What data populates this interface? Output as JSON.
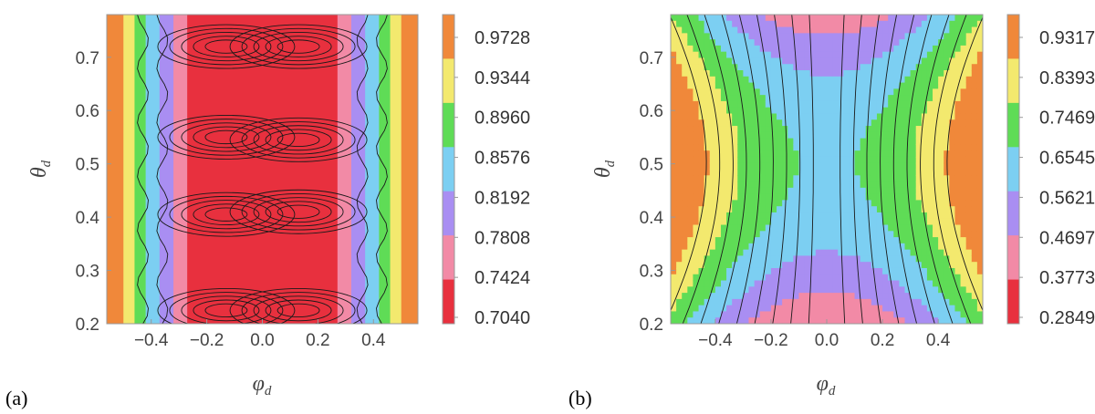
{
  "chart_data": [
    {
      "type": "heatmap",
      "panel_label": "(a)",
      "xlabel": "φ",
      "xlabel_sub": "d",
      "ylabel": "θ",
      "ylabel_sub": "d",
      "xlim": [
        -0.56,
        0.56
      ],
      "ylim": [
        0.2,
        0.78
      ],
      "x_ticks": [
        -0.4,
        -0.2,
        0.0,
        0.2,
        0.4
      ],
      "x_tick_labels": [
        "−0.4",
        "−0.2",
        "0.0",
        "0.2",
        "0.4"
      ],
      "y_ticks": [
        0.2,
        0.3,
        0.4,
        0.5,
        0.6,
        0.7
      ],
      "y_tick_labels": [
        "0.2",
        "0.3",
        "0.4",
        "0.5",
        "0.6",
        "0.7"
      ],
      "colorbar_levels": [
        "0.9728",
        "0.9344",
        "0.8960",
        "0.8576",
        "0.8192",
        "0.7808",
        "0.7424",
        "0.7040"
      ],
      "colorbar_colors": [
        "#f0883a",
        "#f3e96e",
        "#5fdc56",
        "#7ccff2",
        "#a98ef2",
        "#f28aa6",
        "#e8303e"
      ],
      "bands": [
        {
          "x_from": -0.56,
          "x_to": -0.53,
          "value": 0.98
        },
        {
          "x_from": -0.53,
          "x_to": -0.5,
          "value": 0.95
        },
        {
          "x_from": -0.5,
          "x_to": -0.46,
          "value": 0.91
        },
        {
          "x_from": -0.46,
          "x_to": -0.42,
          "value": 0.87
        },
        {
          "x_from": -0.42,
          "x_to": -0.37,
          "value": 0.83
        },
        {
          "x_from": -0.37,
          "x_to": -0.32,
          "value": 0.8
        },
        {
          "x_from": -0.32,
          "x_to": -0.27,
          "value": 0.76
        },
        {
          "x_from": -0.27,
          "x_to": 0.27,
          "value": 0.7
        },
        {
          "x_from": 0.27,
          "x_to": 0.32,
          "value": 0.76
        },
        {
          "x_from": 0.32,
          "x_to": 0.37,
          "value": 0.8
        },
        {
          "x_from": 0.37,
          "x_to": 0.42,
          "value": 0.83
        },
        {
          "x_from": 0.42,
          "x_to": 0.46,
          "value": 0.87
        },
        {
          "x_from": 0.46,
          "x_to": 0.5,
          "value": 0.91
        },
        {
          "x_from": 0.5,
          "x_to": 0.53,
          "value": 0.95
        },
        {
          "x_from": 0.53,
          "x_to": 0.56,
          "value": 0.98
        }
      ],
      "contour_centers": [
        {
          "x": -0.13,
          "y": 0.72
        },
        {
          "x": 0.13,
          "y": 0.72
        },
        {
          "x": -0.13,
          "y": 0.55
        },
        {
          "x": 0.13,
          "y": 0.545
        },
        {
          "x": -0.13,
          "y": 0.405
        },
        {
          "x": 0.13,
          "y": 0.41
        },
        {
          "x": -0.13,
          "y": 0.225
        },
        {
          "x": 0.13,
          "y": 0.225
        }
      ]
    },
    {
      "type": "heatmap",
      "panel_label": "(b)",
      "xlabel": "φ",
      "xlabel_sub": "d",
      "ylabel": "θ",
      "ylabel_sub": "d",
      "xlim": [
        -0.56,
        0.56
      ],
      "ylim": [
        0.2,
        0.78
      ],
      "x_ticks": [
        -0.4,
        -0.2,
        0.0,
        0.2,
        0.4
      ],
      "x_tick_labels": [
        "−0.4",
        "−0.2",
        "0.0",
        "0.2",
        "0.4"
      ],
      "y_ticks": [
        0.2,
        0.3,
        0.4,
        0.5,
        0.6,
        0.7
      ],
      "y_tick_labels": [
        "0.2",
        "0.3",
        "0.4",
        "0.5",
        "0.6",
        "0.7"
      ],
      "colorbar_levels": [
        "0.9317",
        "0.8393",
        "0.7469",
        "0.6545",
        "0.5621",
        "0.4697",
        "0.3773",
        "0.2849"
      ],
      "colorbar_colors": [
        "#f0883a",
        "#f3e96e",
        "#5fdc56",
        "#7ccff2",
        "#a98ef2",
        "#f28aa6",
        "#e8303e"
      ],
      "saddle": {
        "center_x": 0.0,
        "center_y": 0.5
      }
    }
  ]
}
